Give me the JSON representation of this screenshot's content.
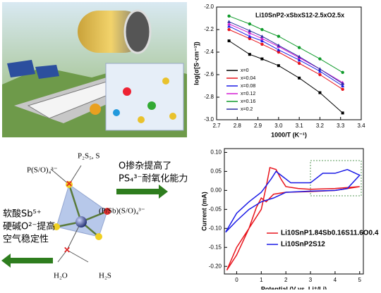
{
  "chart_data": [
    {
      "type": "line",
      "title": "Li10SnP2-xSbxS12-2.5xO2.5x",
      "x_label": "1000/T (K⁻¹)",
      "y_label": "log(σ[S·cm⁻¹])",
      "xlim": [
        2.7,
        3.4
      ],
      "xticks": [
        2.7,
        2.8,
        2.9,
        {
          "value": 3,
          "label": "3.0"
        },
        3.1,
        3.2,
        3.3,
        3.4
      ],
      "ylim": [
        -3,
        -2
      ],
      "yticks": [
        {
          "value": -3,
          "label": "-3.0"
        },
        -2.8,
        -2.6,
        -2.4,
        -2.2,
        {
          "value": -2,
          "label": "-2.0"
        }
      ],
      "x": [
        2.76,
        2.86,
        2.92,
        3.0,
        3.1,
        3.2,
        3.31
      ],
      "markers": true,
      "legend": "upper-left",
      "series": [
        {
          "name": "x=0",
          "color": "#000000",
          "values": [
            -2.3,
            -2.42,
            -2.46,
            -2.52,
            -2.63,
            -2.76,
            -2.94
          ]
        },
        {
          "name": "x=0.04",
          "color": "#e8141c",
          "values": [
            -2.2,
            -2.28,
            -2.33,
            -2.4,
            -2.5,
            -2.6,
            -2.73
          ]
        },
        {
          "name": "x=0.08",
          "color": "#1a1ae6",
          "values": [
            -2.17,
            -2.26,
            -2.3,
            -2.38,
            -2.47,
            -2.57,
            -2.7
          ]
        },
        {
          "name": "x=0.12",
          "color": "#d21ad2",
          "values": [
            -2.15,
            -2.23,
            -2.28,
            -2.35,
            -2.45,
            -2.55,
            -2.67
          ]
        },
        {
          "name": "x=0.16",
          "color": "#0f9a2a",
          "values": [
            -2.08,
            -2.15,
            -2.2,
            -2.26,
            -2.36,
            -2.46,
            -2.58
          ]
        },
        {
          "name": "x=0.2",
          "color": "#2a2aa0",
          "values": [
            -2.13,
            -2.21,
            -2.26,
            -2.34,
            -2.44,
            -2.55,
            -2.68
          ]
        }
      ]
    },
    {
      "type": "line",
      "x_label": "Potential (V vs. Li⁺/Li)",
      "y_label": "Current (mA)",
      "xlim": [
        -0.5,
        5.15
      ],
      "xticks": [
        0,
        1,
        2,
        3,
        4,
        5
      ],
      "ylim": [
        -0.22,
        0.11
      ],
      "yticks": [
        {
          "value": -0.2,
          "label": "-0.20"
        },
        {
          "value": -0.15,
          "label": "-0.15"
        },
        {
          "value": -0.1,
          "label": "-0.10"
        },
        {
          "value": -0.05,
          "label": "-0.05"
        },
        {
          "value": 0,
          "label": "0.00"
        },
        0.05,
        {
          "value": 0.1,
          "label": "0.10"
        }
      ],
      "markers": false,
      "legend": "lower-right",
      "series": [
        {
          "name": "Li10SnP1.84Sb0.16S11.6O0.4",
          "color": "#e8141c",
          "x": [
            -0.4,
            0,
            0.5,
            1,
            1.2,
            1.35,
            1.6,
            1.8,
            2,
            2.5,
            3,
            4,
            5,
            4,
            3,
            2,
            1.5,
            1.2,
            1,
            0.8,
            0.5,
            0,
            -0.4
          ],
          "values": [
            -0.21,
            -0.17,
            -0.1,
            -0.05,
            0.01,
            0.06,
            0.055,
            0.03,
            0.01,
            0.005,
            0.003,
            0.005,
            0.01,
            0,
            -0.003,
            -0.005,
            -0.01,
            -0.03,
            -0.02,
            -0.045,
            -0.1,
            -0.15,
            -0.21
          ]
        },
        {
          "name": "Li10SnP2S12",
          "color": "#1a1ae6",
          "x": [
            -0.45,
            0,
            0.5,
            1,
            1.4,
            1.6,
            1.8,
            2.2,
            3,
            3.5,
            4,
            4.5,
            5,
            4.5,
            4,
            3,
            2,
            1.5,
            1,
            0.5,
            0,
            -0.45
          ],
          "values": [
            -0.11,
            -0.06,
            -0.03,
            -0.005,
            0.03,
            0.05,
            0.04,
            0.02,
            0.02,
            0.045,
            0.045,
            0.055,
            0.04,
            0.005,
            0,
            -0.002,
            -0.005,
            -0.02,
            -0.03,
            -0.05,
            -0.08,
            -0.11
          ]
        }
      ]
    }
  ],
  "diagram": {
    "top_label": "P(S/O)₄³⁻",
    "top_product": "P₂S₅, S",
    "center_label": "(P/Sb)(S/O)₄³⁻",
    "bottom_left": "H₂O",
    "bottom_right": "H₂S",
    "right_text": [
      "O掺杂提高了",
      "PS₄³⁻耐氧化能力"
    ],
    "left_text": [
      "软酸Sb⁵⁺",
      "硬碱O²⁻提高",
      "空气稳定性"
    ]
  }
}
